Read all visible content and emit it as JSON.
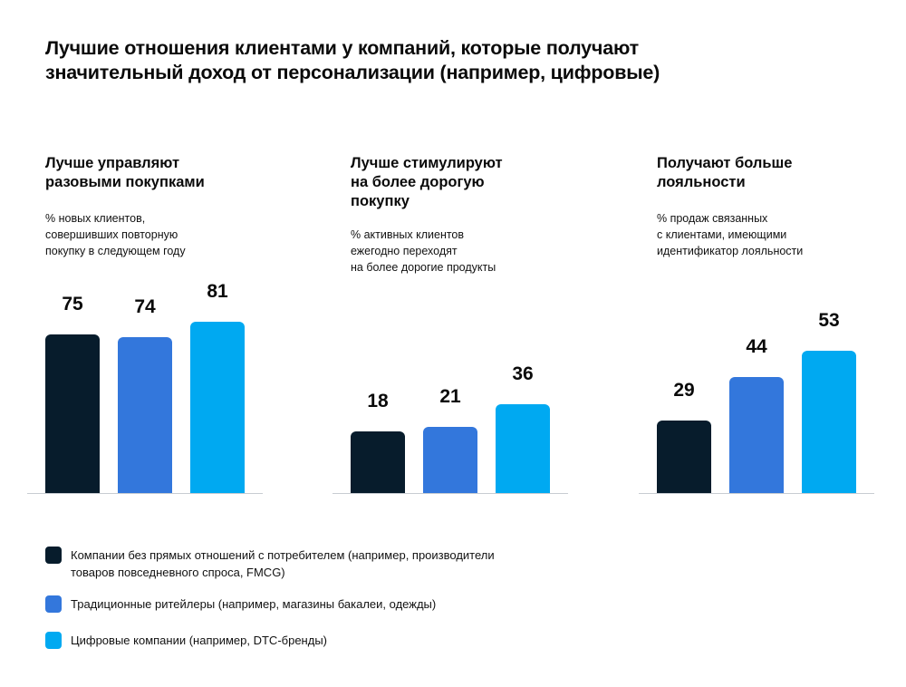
{
  "chart_data": [
    {
      "type": "bar",
      "title": "Лучше управляют\nразовыми покупками",
      "subtitle": "% новых клиентов,\nсовершивших повторную\nпокупку в следующем году",
      "categories": [
        "Компании без прямых отношений с потребителем",
        "Традиционные ритейлеры",
        "Цифровые компании"
      ],
      "values": [
        75,
        74,
        81
      ]
    },
    {
      "type": "bar",
      "title": "Лучше стимулируют\nна более дорогую\nпокупку",
      "subtitle": "% активных клиентов\nежегодно переходят\nна более дорогие продукты",
      "categories": [
        "Компании без прямых отношений с потребителем",
        "Традиционные ритейлеры",
        "Цифровые компании"
      ],
      "values": [
        18,
        21,
        36
      ]
    },
    {
      "type": "bar",
      "title": "Получают больше\nлояльности",
      "subtitle": "% продаж связанных\nс клиентами, имеющими\nидентификатор лояльности",
      "categories": [
        "Компании без прямых отношений с потребителем",
        "Традиционные ритейлеры",
        "Цифровые компании"
      ],
      "values": [
        29,
        44,
        53
      ]
    }
  ],
  "title": "Лучшие отношения  клиентами у компаний, которые получают\nзначительный доход от персонализации (например, цифровые)",
  "legend": [
    {
      "label": "Компании без прямых отношений с потребителем (например, производители\nтоваров повседневного спроса, FMCG)",
      "color": "#071c2c"
    },
    {
      "label": "Традиционные ритейлеры (например, магазины бакалеи, одежды)",
      "color": "#3377dc"
    },
    {
      "label": "Цифровые компании (например, DTC-бренды)",
      "color": "#00a9f1"
    }
  ]
}
